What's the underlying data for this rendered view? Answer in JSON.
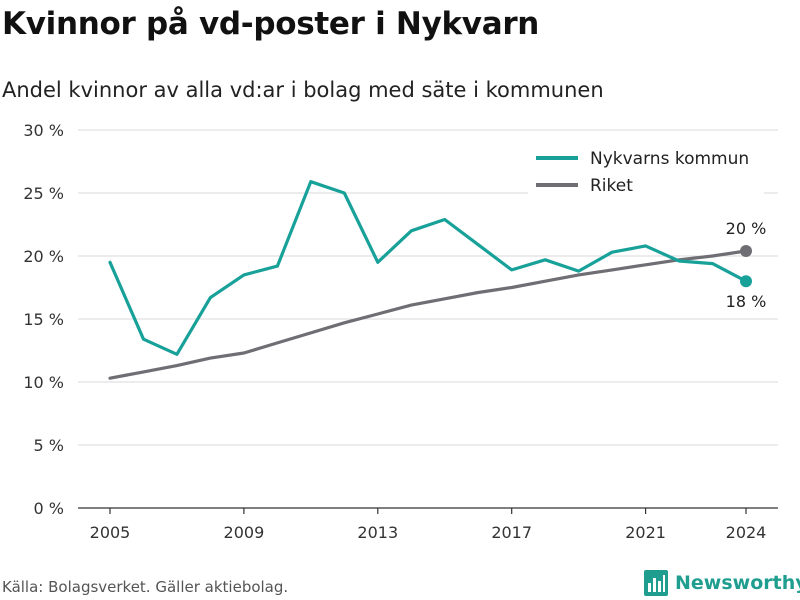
{
  "title": "Kvinnor på vd-poster i Nykvarn",
  "subtitle": "Andel kvinnor av alla vd:ar i bolag med säte i kommunen",
  "source": "Källa: Bolagsverket. Gäller aktiebolag.",
  "brand": {
    "name": "Newsworthy",
    "icon": "bar-chart-logo-icon",
    "color": "#1f9e8f"
  },
  "colors": {
    "nykvarn": "#18a199",
    "riket": "#6e6e74",
    "grid": "#d9d9d9",
    "axis": "#333333"
  },
  "chart_data": {
    "type": "line",
    "title": "Kvinnor på vd-poster i Nykvarn",
    "subtitle": "Andel kvinnor av alla vd:ar i bolag med säte i kommunen",
    "x": [
      2005,
      2006,
      2007,
      2008,
      2009,
      2010,
      2011,
      2012,
      2013,
      2014,
      2015,
      2016,
      2017,
      2018,
      2019,
      2020,
      2021,
      2022,
      2023,
      2024
    ],
    "xticks": [
      "2005",
      "2009",
      "2013",
      "2017",
      "2021",
      "2024"
    ],
    "yticks": [
      "0 %",
      "5 %",
      "10 %",
      "15 %",
      "20 %",
      "25 %",
      "30 %"
    ],
    "ylim": [
      0,
      30
    ],
    "grid": true,
    "legend_position": "top-right",
    "series": [
      {
        "name": "Nykvarns kommun",
        "color": "#18a199",
        "values": [
          19.5,
          13.4,
          12.2,
          16.7,
          18.5,
          19.2,
          25.9,
          25.0,
          19.5,
          22.0,
          22.9,
          20.9,
          18.9,
          19.7,
          18.8,
          20.3,
          20.8,
          19.6,
          19.4,
          18.0
        ],
        "end_label": "18 %"
      },
      {
        "name": "Riket",
        "color": "#6e6e74",
        "values": [
          10.3,
          10.8,
          11.3,
          11.9,
          12.3,
          13.1,
          13.9,
          14.7,
          15.4,
          16.1,
          16.6,
          17.1,
          17.5,
          18.0,
          18.5,
          18.9,
          19.3,
          19.7,
          20.0,
          20.4
        ],
        "end_label": "20 %"
      }
    ]
  }
}
